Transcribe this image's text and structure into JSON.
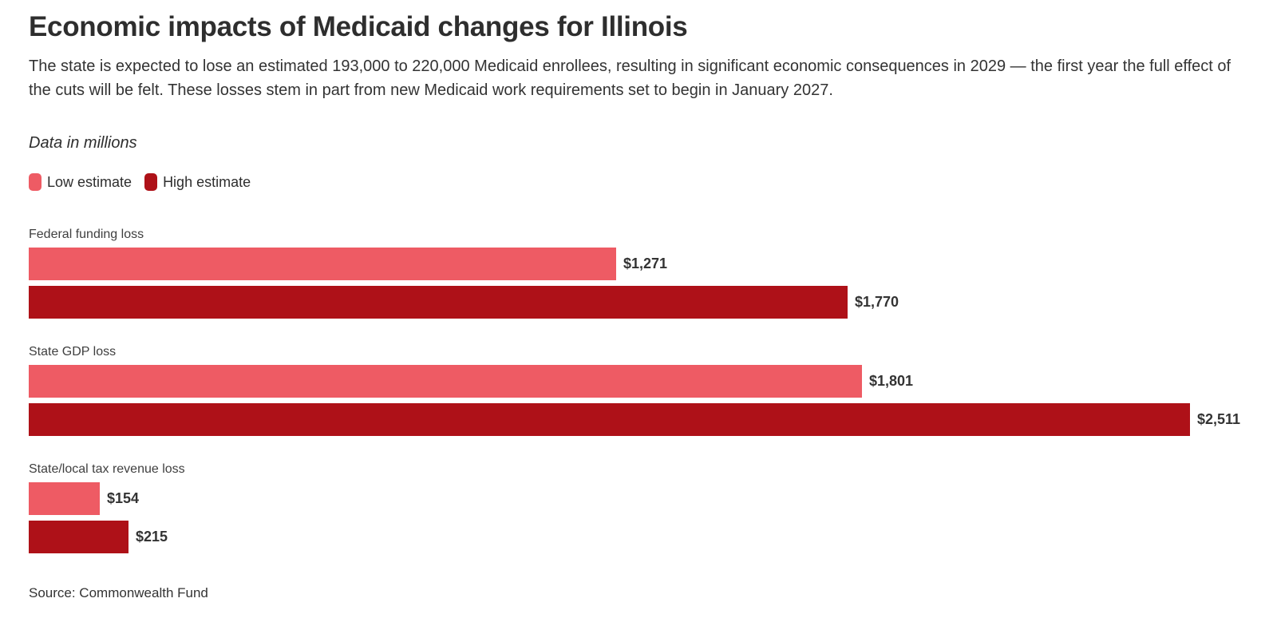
{
  "title": "Economic impacts of Medicaid changes for Illinois",
  "subtitle": "The state is expected to lose an estimated 193,000 to 220,000 Medicaid enrollees, resulting in significant economic consequences in 2029 — the first year the full effect of the cuts will be felt. These losses stem in part from new Medicaid work requirements set to begin in January 2027.",
  "note": "Data in millions",
  "source": "Source: Commonwealth Fund",
  "colors": {
    "low_estimate": "#ee5b64",
    "high_estimate": "#ae1118"
  },
  "legend": {
    "items": [
      {
        "label": "Low estimate",
        "color": "#ee5b64"
      },
      {
        "label": "High estimate",
        "color": "#ae1118"
      }
    ]
  },
  "chart_data": {
    "type": "bar",
    "orientation": "horizontal",
    "title": "Economic impacts of Medicaid changes for Illinois",
    "unit_note": "Data in millions",
    "categories": [
      "Federal funding loss",
      "State GDP loss",
      "State/local tax revenue loss"
    ],
    "series": [
      {
        "name": "Low estimate",
        "color": "#ee5b64",
        "values": [
          1271,
          1801,
          154
        ],
        "value_labels": [
          "$1,271",
          "$1,801",
          "$154"
        ]
      },
      {
        "name": "High estimate",
        "color": "#ae1118",
        "values": [
          1770,
          2511,
          215
        ],
        "value_labels": [
          "$1,770",
          "$2,511",
          "$215"
        ]
      }
    ],
    "xlim": [
      0,
      2511
    ],
    "grid": false,
    "legend_position": "top-left",
    "value_labels_shown": true,
    "source": "Source: Commonwealth Fund"
  }
}
